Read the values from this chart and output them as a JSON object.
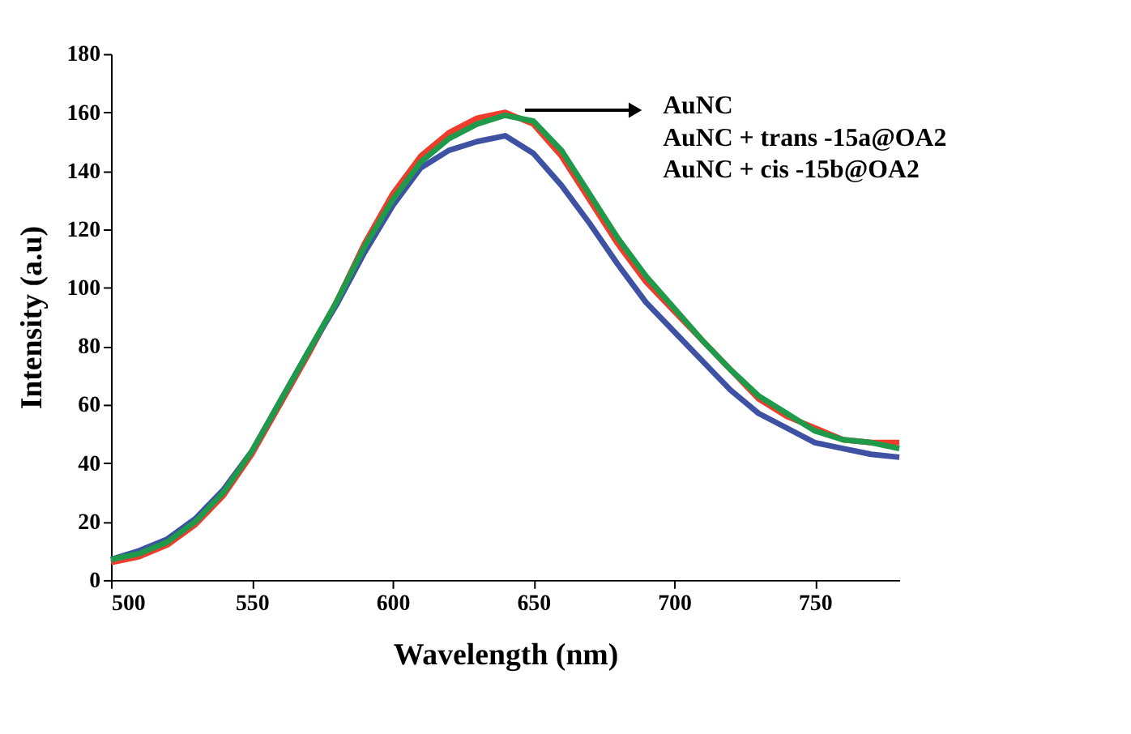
{
  "chart_data": {
    "type": "line",
    "xlabel": "Wavelength (nm)",
    "ylabel": "Intensity (a.u)",
    "annotations": [
      "AuNC",
      "AuNC +  trans -15a@OA2",
      "AuNC +  cis -15b@OA2"
    ],
    "x": [
      500,
      510,
      520,
      530,
      540,
      550,
      560,
      570,
      580,
      590,
      600,
      610,
      620,
      630,
      640,
      650,
      660,
      670,
      680,
      690,
      700,
      710,
      720,
      730,
      740,
      750,
      760,
      770,
      780
    ],
    "series": [
      {
        "color": "#ee3d2c",
        "values": [
          6,
          8,
          12,
          19,
          29,
          43,
          60,
          77,
          95,
          115,
          132,
          145,
          153,
          158,
          160,
          156,
          145,
          130,
          115,
          102,
          92,
          82,
          72,
          62,
          56,
          52,
          48,
          47,
          47
        ]
      },
      {
        "color": "#3f51a3",
        "values": [
          7,
          10,
          14,
          21,
          31,
          44,
          61,
          78,
          94,
          112,
          128,
          141,
          147,
          150,
          152,
          146,
          135,
          122,
          108,
          95,
          85,
          75,
          65,
          57,
          52,
          47,
          45,
          43,
          42
        ]
      },
      {
        "color": "#1e9a4a",
        "values": [
          7,
          9,
          13,
          20,
          30,
          44,
          61,
          78,
          95,
          114,
          130,
          143,
          151,
          156,
          159,
          157,
          147,
          132,
          117,
          104,
          93,
          82,
          72,
          63,
          57,
          51,
          48,
          47,
          45
        ]
      }
    ],
    "xlim": [
      500,
      780
    ],
    "xticks": [
      500,
      550,
      600,
      650,
      700,
      750
    ],
    "ylim": [
      0,
      180
    ],
    "yticks": [
      0,
      20,
      40,
      60,
      80,
      100,
      120,
      140,
      160,
      180
    ],
    "grid": false,
    "marker": "none",
    "line_style": "solid"
  }
}
